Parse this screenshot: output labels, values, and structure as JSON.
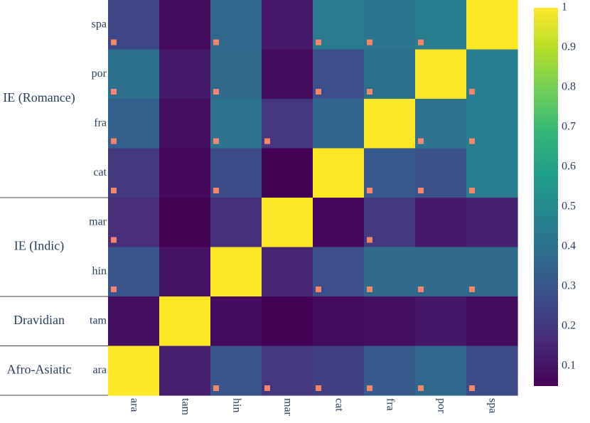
{
  "chart_data": {
    "type": "heatmap",
    "title": "",
    "x_categories": [
      "ara",
      "tam",
      "hin",
      "mar",
      "cat",
      "fra",
      "por",
      "spa"
    ],
    "y_categories_bottom_to_top": [
      "ara",
      "tam",
      "hin",
      "mar",
      "cat",
      "fra",
      "por",
      "spa"
    ],
    "y_groups": [
      {
        "label": "IE (Romance)",
        "members": [
          "cat",
          "fra",
          "por",
          "spa"
        ]
      },
      {
        "label": "IE (Indic)",
        "members": [
          "hin",
          "mar"
        ]
      },
      {
        "label": "Dravidian",
        "members": [
          "tam"
        ]
      },
      {
        "label": "Afro-Asiatic",
        "members": [
          "ara"
        ]
      }
    ],
    "values_top_to_bottom": [
      [
        0.25,
        0.08,
        0.37,
        0.12,
        0.44,
        0.42,
        0.45,
        1.0
      ],
      [
        0.4,
        0.12,
        0.38,
        0.08,
        0.28,
        0.4,
        1.0,
        0.45
      ],
      [
        0.34,
        0.09,
        0.41,
        0.2,
        0.36,
        1.0,
        0.41,
        0.45
      ],
      [
        0.21,
        0.07,
        0.27,
        0.05,
        1.0,
        0.32,
        0.29,
        0.45
      ],
      [
        0.17,
        0.04,
        0.18,
        1.0,
        0.07,
        0.21,
        0.12,
        0.14
      ],
      [
        0.3,
        0.1,
        1.0,
        0.15,
        0.28,
        0.38,
        0.38,
        0.38
      ],
      [
        0.09,
        1.0,
        0.08,
        0.04,
        0.08,
        0.09,
        0.11,
        0.08
      ],
      [
        1.0,
        0.13,
        0.3,
        0.2,
        0.23,
        0.32,
        0.37,
        0.27
      ]
    ],
    "markers_top_to_bottom": [
      [
        1,
        0,
        1,
        0,
        1,
        1,
        1,
        0
      ],
      [
        1,
        0,
        1,
        0,
        1,
        1,
        0,
        1
      ],
      [
        1,
        0,
        1,
        1,
        0,
        0,
        1,
        1
      ],
      [
        1,
        0,
        1,
        0,
        0,
        1,
        1,
        1
      ],
      [
        1,
        0,
        0,
        0,
        0,
        1,
        0,
        0
      ],
      [
        1,
        0,
        0,
        0,
        1,
        1,
        1,
        1
      ],
      [
        0,
        0,
        0,
        0,
        0,
        0,
        0,
        0
      ],
      [
        0,
        0,
        1,
        1,
        1,
        1,
        1,
        1
      ]
    ],
    "marker_color": "#f4866c",
    "colorscale": "viridis",
    "zlim": [
      0.05,
      1.0
    ],
    "colorbar_ticks": [
      "0.1",
      "0.2",
      "0.3",
      "0.4",
      "0.5",
      "0.6",
      "0.7",
      "0.8",
      "0.9",
      "1"
    ],
    "colorbar_tick_values": [
      0.1,
      0.2,
      0.3,
      0.4,
      0.5,
      0.6,
      0.7,
      0.8,
      0.9,
      1.0
    ]
  }
}
